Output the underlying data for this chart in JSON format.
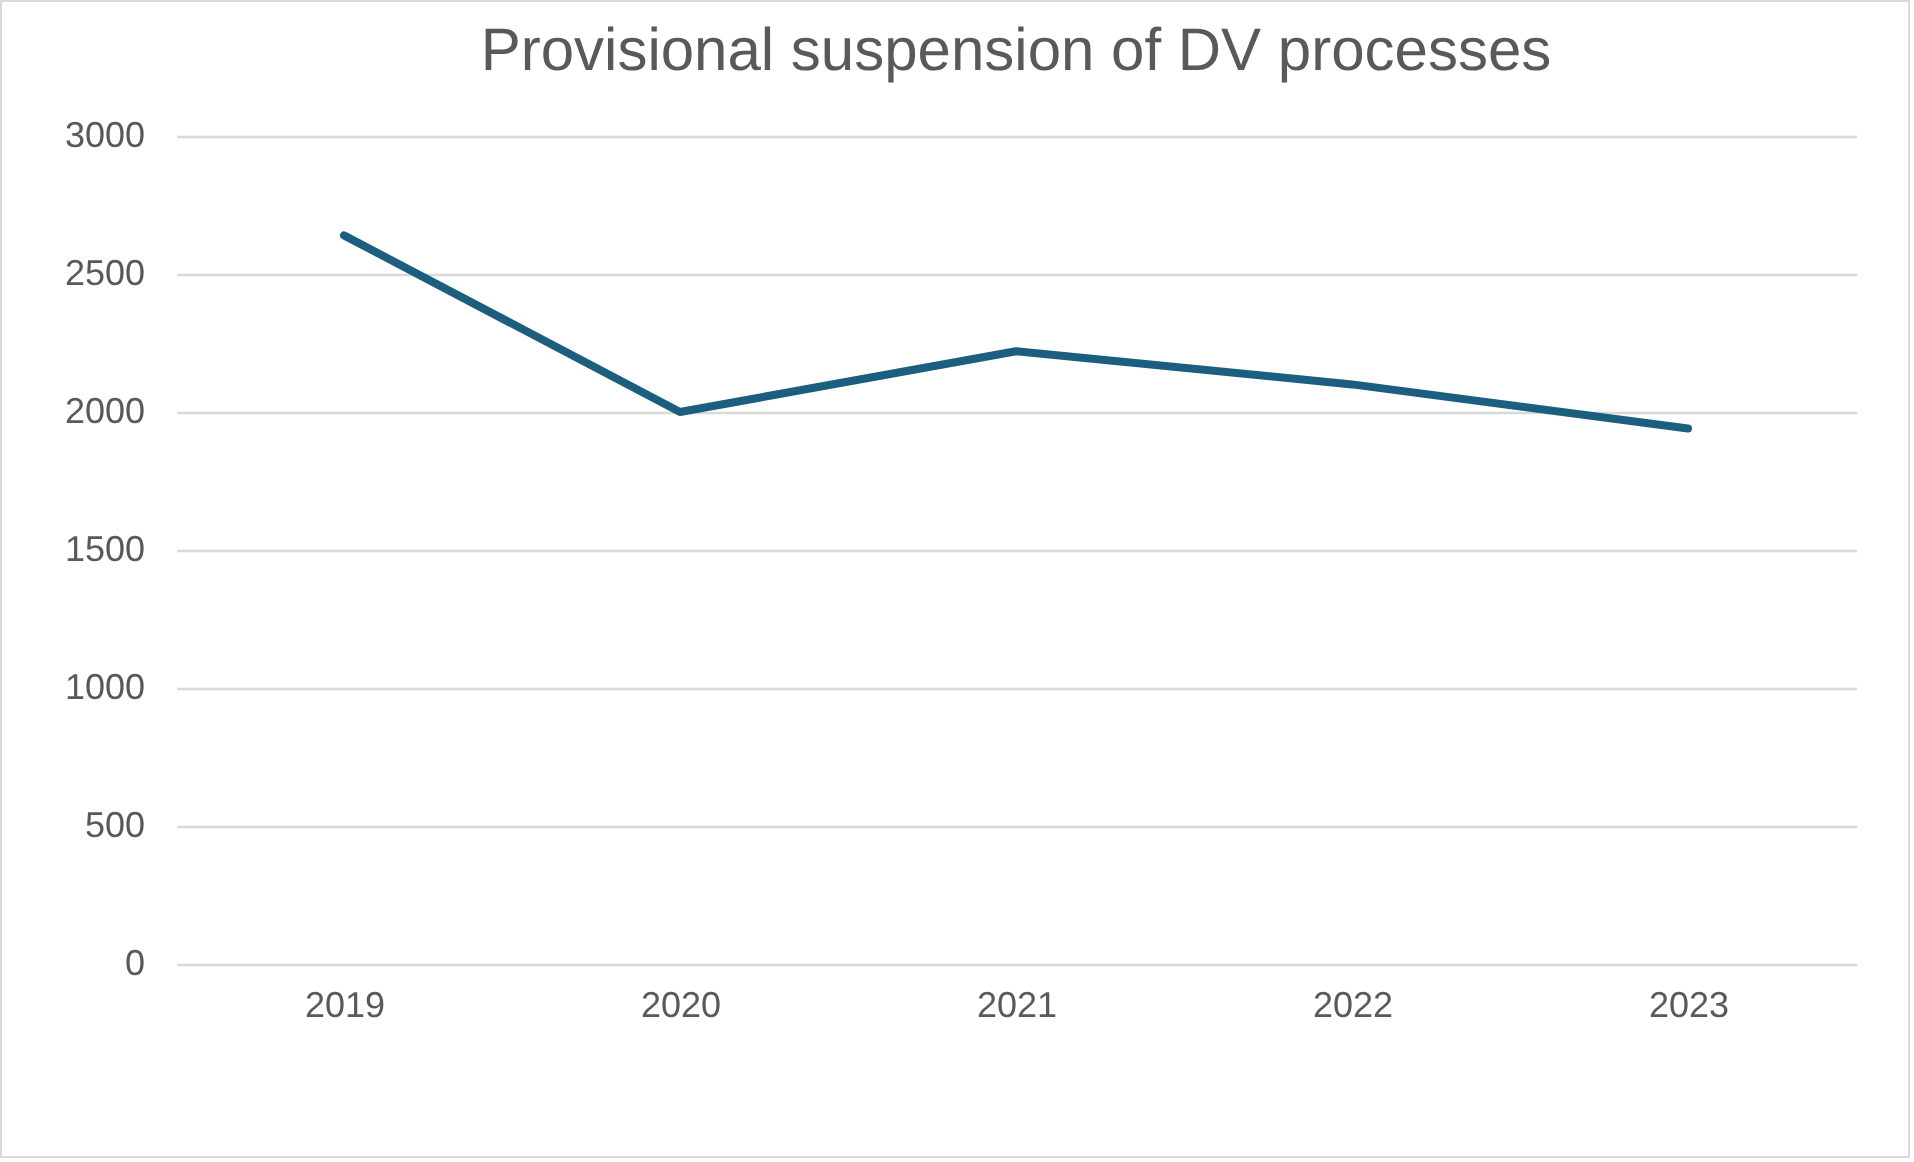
{
  "chart_data": {
    "type": "line",
    "title": "Provisional suspension of DV processes",
    "categories": [
      "2019",
      "2020",
      "2021",
      "2022",
      "2023"
    ],
    "series": [
      {
        "color": "#1b5e7e",
        "values": [
          2640,
          2000,
          2220,
          2100,
          1940
        ]
      }
    ],
    "ylim": [
      0,
      3000
    ],
    "yticks": [
      0,
      500,
      1000,
      1500,
      2000,
      2500,
      3000
    ],
    "grid": "y",
    "marker": "none",
    "line_style": "solid"
  }
}
